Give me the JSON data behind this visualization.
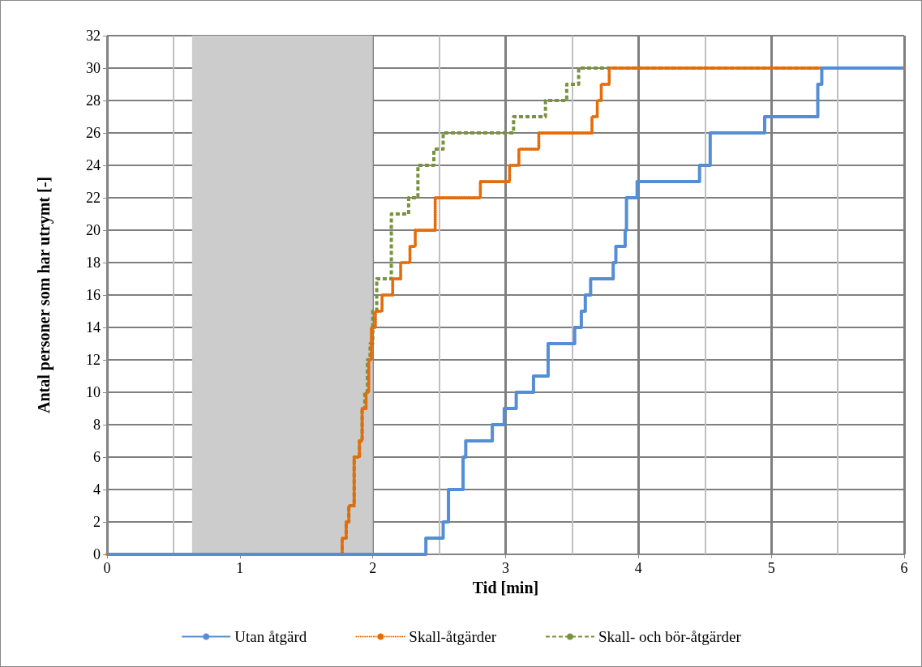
{
  "chart_data": {
    "type": "step",
    "xlabel": "Tid [min]",
    "ylabel": "Antal personer som har utrymt [-]",
    "xlim": [
      0,
      6
    ],
    "xticks": [
      0,
      1,
      2,
      3,
      4,
      5,
      6
    ],
    "ylim": [
      0,
      32
    ],
    "yticks": [
      0,
      2,
      4,
      6,
      8,
      10,
      12,
      14,
      16,
      18,
      20,
      22,
      24,
      26,
      28,
      30,
      32
    ],
    "grid": true,
    "legend": "bottom",
    "marker": "none",
    "bands": [
      {
        "axis": "x",
        "from": 0.64,
        "to": 2.0,
        "color": "#cccccc"
      }
    ],
    "series": [
      {
        "name": "Utan åtgärd",
        "color": "#558ed5",
        "line_style": "solid",
        "x": [
          0,
          2.4,
          2.53,
          2.57,
          2.68,
          2.7,
          2.9,
          2.99,
          3.08,
          3.21,
          3.32,
          3.52,
          3.57,
          3.6,
          3.64,
          3.81,
          3.83,
          3.9,
          3.91,
          3.99,
          4.46,
          4.54,
          4.95,
          5.35,
          5.38,
          6
        ],
        "values": [
          0,
          1,
          2,
          4,
          6,
          7,
          8,
          9,
          10,
          11,
          13,
          14,
          15,
          16,
          17,
          18,
          19,
          20,
          22,
          23,
          24,
          26,
          27,
          29,
          30,
          30
        ]
      },
      {
        "name": "Skall-åtgärder",
        "color": "#e46c0a",
        "line_style": "dotted",
        "x": [
          0,
          1.77,
          1.8,
          1.82,
          1.86,
          1.9,
          1.92,
          1.95,
          1.97,
          1.99,
          2.02,
          2.07,
          2.15,
          2.21,
          2.28,
          2.32,
          2.47,
          2.81,
          3.03,
          3.1,
          3.25,
          3.65,
          3.69,
          3.72,
          3.78,
          6
        ],
        "values": [
          0,
          1,
          2,
          3,
          6,
          7,
          9,
          10,
          12,
          14,
          15,
          16,
          17,
          18,
          19,
          20,
          22,
          23,
          24,
          25,
          26,
          27,
          28,
          29,
          30,
          30
        ]
      },
      {
        "name": "Skall- och bör-åtgärder",
        "color": "#77933c",
        "line_style": "dashed",
        "x": [
          0,
          1.77,
          1.8,
          1.82,
          1.86,
          1.9,
          1.92,
          1.94,
          1.96,
          1.98,
          2.0,
          2.03,
          2.14,
          2.27,
          2.34,
          2.46,
          2.53,
          3.06,
          3.3,
          3.46,
          3.55,
          6
        ],
        "values": [
          0,
          1,
          2,
          3,
          6,
          7,
          9,
          10,
          12,
          13,
          15,
          17,
          21,
          22,
          24,
          25,
          26,
          27,
          28,
          29,
          30,
          30
        ]
      }
    ]
  }
}
